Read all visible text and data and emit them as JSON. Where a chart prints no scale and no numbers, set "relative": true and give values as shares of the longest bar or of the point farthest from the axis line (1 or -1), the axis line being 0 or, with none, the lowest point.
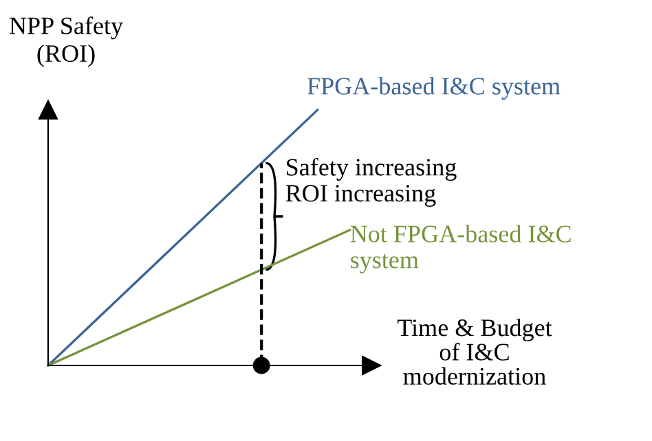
{
  "chart_data": {
    "type": "line",
    "relative": true,
    "xlabel": "Time & Budget\nof I&C\nmodernization",
    "ylabel": "NPP Safety\n(ROI)",
    "categories": [
      null,
      null,
      null,
      null,
      null,
      null,
      null,
      null,
      null,
      null,
      null,
      null,
      null,
      null,
      null,
      null,
      null,
      null,
      null,
      null,
      null,
      null,
      null,
      null,
      null,
      null,
      null,
      null,
      null,
      null,
      null
    ],
    "marker": "none",
    "line_style": "solid",
    "series": [
      {
        "name": "FPGA-based I&C system",
        "color": "#3c6496",
        "values": [
          0,
          null,
          null,
          null,
          null,
          null,
          null,
          null,
          null,
          null,
          null,
          null,
          null,
          null,
          null,
          null,
          null,
          null,
          null,
          null,
          null,
          null,
          null,
          null,
          null,
          1,
          null,
          null,
          null,
          null,
          null
        ]
      },
      {
        "name": "Not FPGA-based I&C system",
        "color": "#77933c",
        "values": [
          0,
          null,
          null,
          null,
          null,
          null,
          null,
          null,
          null,
          null,
          null,
          null,
          null,
          null,
          null,
          null,
          null,
          null,
          null,
          null,
          null,
          null,
          null,
          null,
          null,
          null,
          null,
          null,
          0.53,
          null,
          null
        ]
      }
    ],
    "annotations": [
      "Safety increasing\nROI increasing"
    ]
  }
}
